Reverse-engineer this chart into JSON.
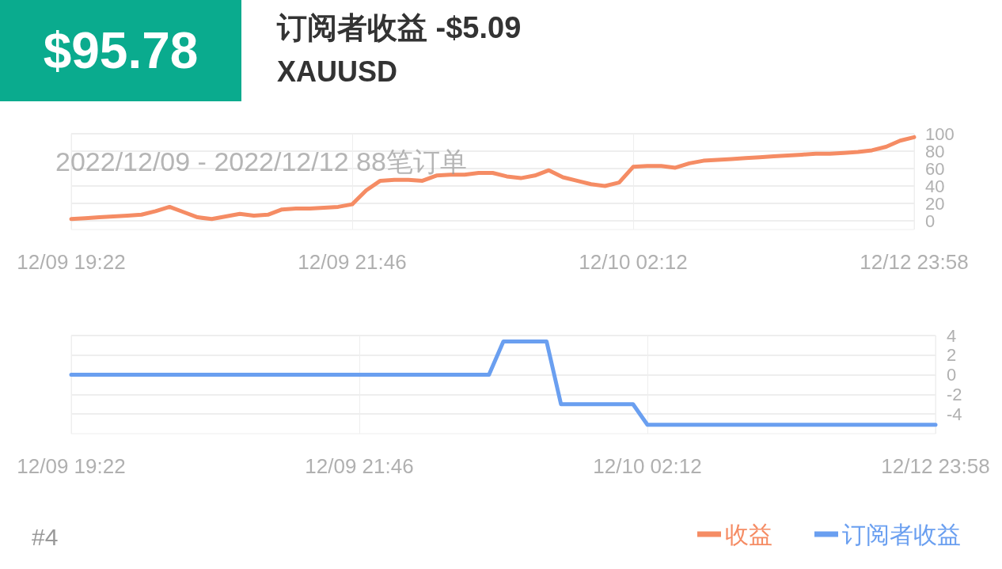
{
  "chart_data": [
    {
      "type": "line",
      "title": "订阅者收益 -$5.09",
      "subtitle": "XAUUSD",
      "annotations": [
        "$95.78",
        "2022/12/09 - 2022/12/12  88笔订单",
        "#4"
      ],
      "categories": [
        "12/09 19:22",
        null,
        null,
        null,
        null,
        null,
        null,
        null,
        null,
        null,
        null,
        null,
        null,
        null,
        null,
        null,
        null,
        null,
        null,
        null,
        "12/09 21:46",
        null,
        null,
        null,
        null,
        null,
        null,
        null,
        null,
        null,
        null,
        null,
        null,
        null,
        null,
        null,
        null,
        null,
        null,
        null,
        "12/10 02:12",
        null,
        null,
        null,
        null,
        null,
        null,
        null,
        null,
        null,
        null,
        null,
        null,
        null,
        null,
        null,
        null,
        null,
        null,
        null,
        "12/12 23:58"
      ],
      "series": [
        {
          "name": "收益",
          "color": "#f58c64",
          "values": [
            2,
            3,
            4,
            5,
            6,
            7,
            11,
            16,
            10,
            4,
            2,
            5,
            8,
            6,
            7,
            13,
            14,
            14,
            15,
            16,
            19,
            35,
            46,
            47,
            47,
            46,
            52,
            53,
            53,
            55,
            55,
            51,
            49,
            52,
            58,
            50,
            46,
            42,
            40,
            44,
            62,
            63,
            63,
            61,
            66,
            69,
            70,
            71,
            72,
            73,
            74,
            75,
            76,
            77,
            77,
            78,
            79,
            81,
            85,
            92,
            96
          ]
        }
      ],
      "ylim": [
        -10,
        100
      ],
      "yticks": [
        0,
        20,
        40,
        60,
        80,
        100
      ],
      "grid": true,
      "legend": "bottom right",
      "marker": "none",
      "line_style": "solid"
    },
    {
      "type": "line",
      "categories": [
        "12/09 19:22",
        null,
        null,
        null,
        null,
        null,
        null,
        null,
        null,
        null,
        null,
        null,
        null,
        null,
        null,
        null,
        null,
        null,
        null,
        null,
        "12/09 21:46",
        null,
        null,
        null,
        null,
        null,
        null,
        null,
        null,
        null,
        null,
        null,
        null,
        null,
        null,
        null,
        null,
        null,
        null,
        null,
        "12/10 02:12",
        null,
        null,
        null,
        null,
        null,
        null,
        null,
        null,
        null,
        null,
        null,
        null,
        null,
        null,
        null,
        null,
        null,
        null,
        null,
        "12/12 23:58"
      ],
      "series": [
        {
          "name": "订阅者收益",
          "color": "#6a9ff0",
          "values": [
            0,
            0,
            0,
            0,
            0,
            0,
            0,
            0,
            0,
            0,
            0,
            0,
            0,
            0,
            0,
            0,
            0,
            0,
            0,
            0,
            0,
            0,
            0,
            0,
            0,
            0,
            0,
            0,
            0,
            0,
            3.4,
            3.4,
            3.4,
            3.4,
            -3,
            -3,
            -3,
            -3,
            -3,
            -3,
            -5.09,
            -5.09,
            -5.09,
            -5.09,
            -5.09,
            -5.09,
            -5.09,
            -5.09,
            -5.09,
            -5.09,
            -5.09,
            -5.09,
            -5.09,
            -5.09,
            -5.09,
            -5.09,
            -5.09,
            -5.09,
            -5.09,
            -5.09,
            -5.09
          ]
        }
      ],
      "ylim": [
        -6,
        4
      ],
      "yticks": [
        -4,
        -2,
        0,
        2,
        4
      ],
      "grid": true,
      "legend": "bottom right",
      "marker": "none",
      "line_style": "solid"
    }
  ]
}
